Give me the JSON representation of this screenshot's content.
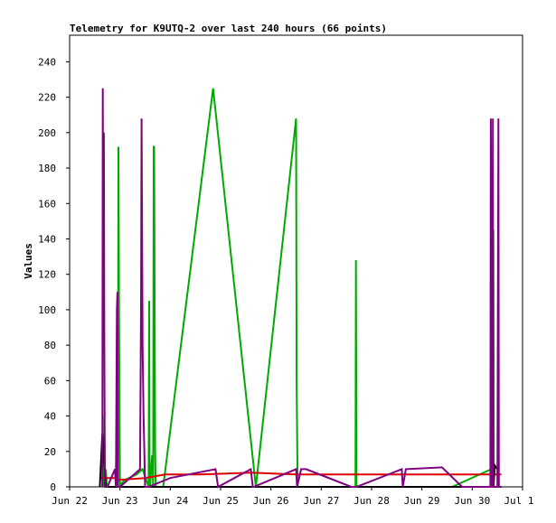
{
  "chart_data": {
    "type": "line",
    "title": "Telemetry for K9UTQ-2 over last 240 hours (66 points)",
    "xlabel": "",
    "ylabel": "Values",
    "ylim": [
      0,
      255
    ],
    "y_ticks": [
      0,
      20,
      40,
      60,
      80,
      100,
      120,
      140,
      160,
      180,
      200,
      220,
      240
    ],
    "x_range": [
      "Jun 22",
      "Jul 1"
    ],
    "x_ticks": [
      "Jun 22",
      "Jun 23",
      "Jun 24",
      "Jun 25",
      "Jun 26",
      "Jun 27",
      "Jun 28",
      "Jun 29",
      "Jun 30",
      "Jul 1"
    ],
    "grid": false,
    "legend": "none",
    "series": [
      {
        "color": "#00aa00",
        "x": [
          22.68,
          22.69,
          22.7,
          22.72,
          22.74,
          22.86,
          22.94,
          22.95,
          22.96,
          22.97,
          22.98,
          22.99,
          23.0,
          23.01,
          23.03,
          23.1,
          23.33,
          23.45,
          23.57,
          23.58,
          23.59,
          23.6,
          23.62,
          23.64,
          23.66,
          23.67,
          23.68,
          23.7,
          23.71,
          23.74,
          23.86,
          24.85,
          25.7,
          26.5,
          26.51,
          26.53,
          26.58,
          27.6,
          27.68,
          27.69,
          27.7,
          27.72,
          27.75,
          28.9,
          29.6,
          30.38,
          30.39,
          30.42,
          30.43,
          30.44,
          30.56,
          30.58
        ],
        "y": [
          0,
          40,
          0,
          10,
          0,
          0,
          0,
          95,
          0,
          192,
          110,
          60,
          0,
          0,
          2,
          4,
          7,
          10,
          0,
          105,
          0,
          0,
          10,
          18,
          0,
          192,
          192,
          20,
          0,
          0,
          0,
          225,
          0,
          208,
          60,
          0,
          0,
          0,
          0,
          128,
          0,
          0,
          0,
          0,
          0,
          10,
          110,
          145,
          0,
          0,
          0,
          0
        ]
      },
      {
        "color": "#dd0000",
        "x": [
          22.6,
          22.9,
          23.0,
          23.5,
          23.9,
          24.6,
          25.6,
          26.5,
          27.5,
          28.5,
          29.5,
          30.4,
          30.58
        ],
        "y": [
          5,
          5,
          4,
          5,
          7,
          7,
          8,
          7,
          7,
          7,
          7,
          7,
          7
        ]
      },
      {
        "color": "#000000",
        "x": [
          22.6,
          22.65,
          22.72,
          23.0,
          23.3,
          23.5,
          24.0,
          25.0,
          26.0,
          27.0,
          28.0,
          29.0,
          30.0,
          30.42,
          30.45,
          30.5,
          30.52,
          30.58
        ],
        "y": [
          0,
          30,
          0,
          0,
          0,
          0,
          0,
          0,
          0,
          0,
          0,
          0,
          0,
          0,
          12,
          10,
          0,
          0
        ]
      },
      {
        "color": "#800080",
        "x": [
          22.65,
          22.66,
          22.67,
          22.68,
          22.69,
          22.7,
          22.71,
          22.74,
          22.75,
          22.9,
          22.92,
          22.94,
          22.95,
          22.96,
          22.97,
          22.98,
          23.0,
          23.4,
          23.42,
          23.43,
          23.45,
          23.47,
          23.5,
          23.52,
          23.55,
          23.57,
          24.0,
          24.9,
          24.95,
          25.6,
          25.64,
          25.66,
          26.5,
          26.52,
          26.6,
          26.7,
          27.6,
          27.65,
          27.7,
          28.6,
          28.62,
          28.68,
          29.4,
          29.8,
          30.36,
          30.37,
          30.38,
          30.39,
          30.4,
          30.41,
          30.42,
          30.43,
          30.46,
          30.5,
          30.52,
          30.53,
          30.55,
          30.58
        ],
        "y": [
          0,
          225,
          110,
          200,
          80,
          0,
          0,
          0,
          0,
          10,
          0,
          100,
          110,
          0,
          0,
          0,
          0,
          10,
          100,
          208,
          80,
          40,
          0,
          0,
          0,
          0,
          5,
          10,
          0,
          10,
          0,
          0,
          10,
          0,
          10,
          10,
          0,
          0,
          0,
          10,
          0,
          10,
          11,
          0,
          0,
          208,
          110,
          0,
          0,
          208,
          0,
          0,
          0,
          0,
          208,
          0,
          0,
          0
        ]
      }
    ]
  }
}
